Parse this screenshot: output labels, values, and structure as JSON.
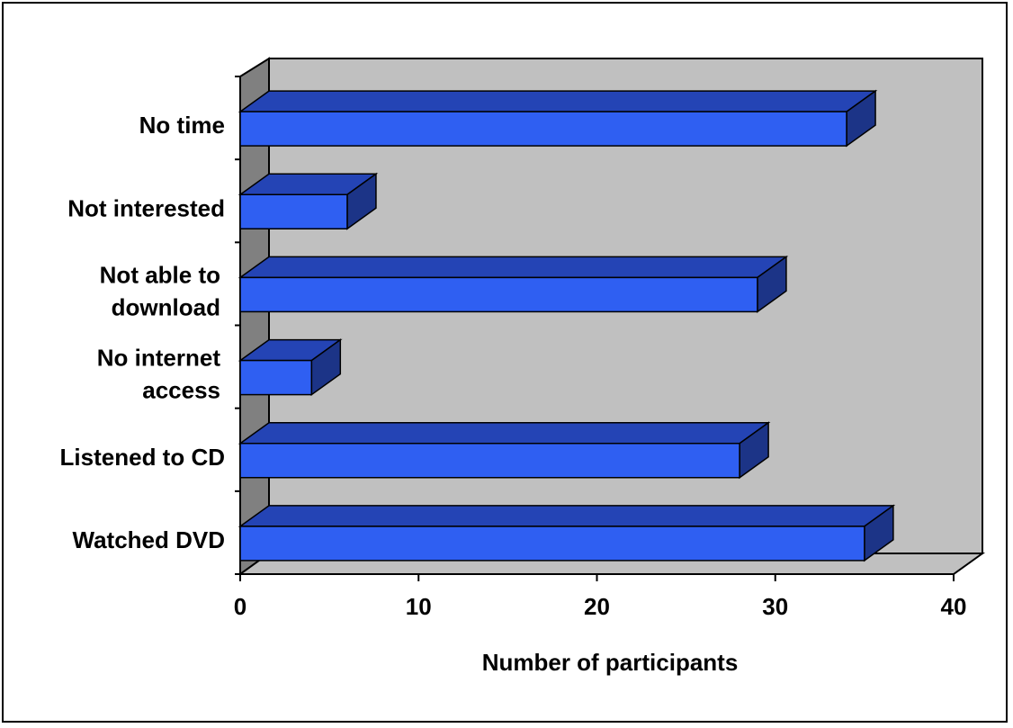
{
  "chart_data": {
    "type": "bar",
    "orientation": "horizontal",
    "style": "3d",
    "categories": [
      [
        "No time"
      ],
      [
        "Not interested"
      ],
      [
        "Not able to",
        "download"
      ],
      [
        "No internet",
        "access"
      ],
      [
        "Listened to CD"
      ],
      [
        "Watched DVD"
      ]
    ],
    "values": [
      34,
      6,
      29,
      4,
      28,
      35
    ],
    "xlabel": "Number of participants",
    "ylabel": "",
    "title": "",
    "xlim": [
      0,
      40
    ],
    "xticks": [
      0,
      10,
      20,
      30,
      40
    ],
    "grid": false,
    "legend": "none",
    "colors": {
      "bar_front": "#2f5ff2",
      "bar_top": "#2444b5",
      "bar_side": "#1c3487",
      "back_wall": "#c0c0c0",
      "side_wall": "#808080",
      "floor": "#c0c0c0"
    }
  }
}
